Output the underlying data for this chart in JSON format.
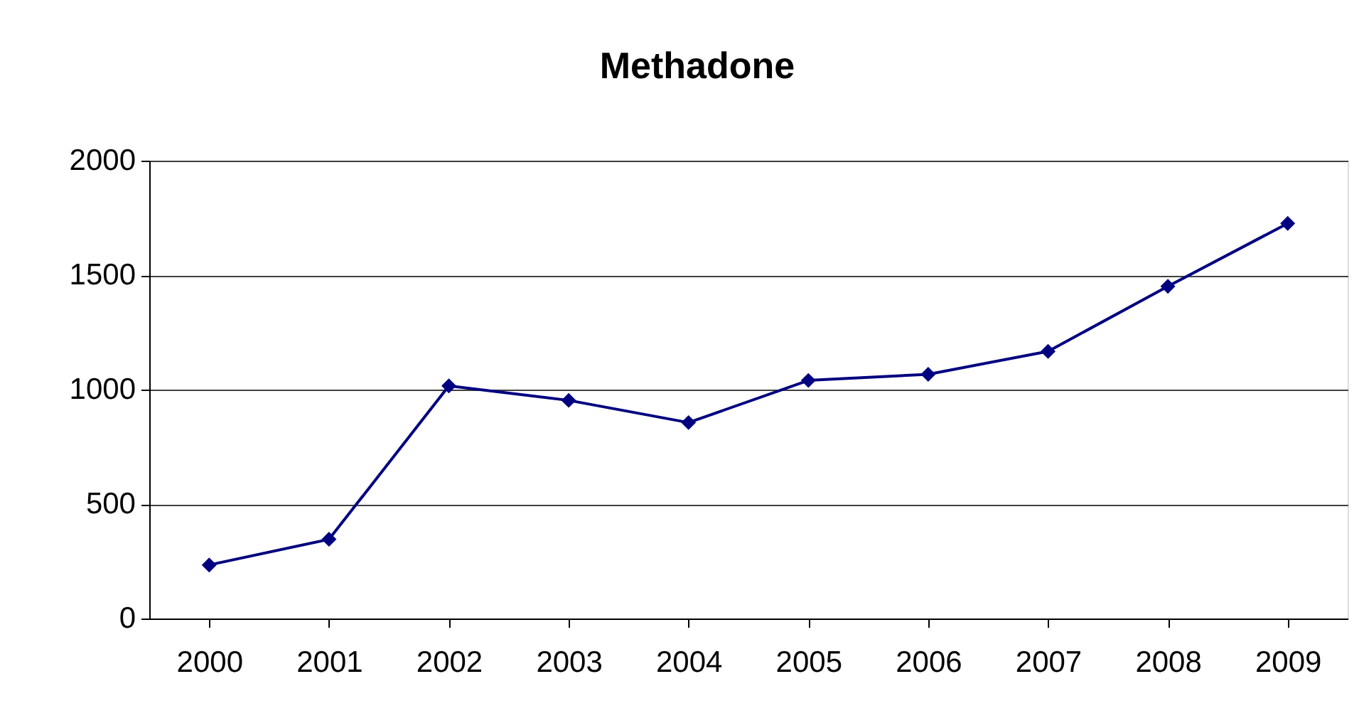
{
  "chart_data": {
    "type": "line",
    "title": "Methadone",
    "categories": [
      "2000",
      "2001",
      "2002",
      "2003",
      "2004",
      "2005",
      "2006",
      "2007",
      "2008",
      "2009"
    ],
    "series": [
      {
        "color": "#000080",
        "values": [
          234,
          346,
          1016,
          953,
          856,
          1040,
          1067,
          1167,
          1451,
          1726
        ]
      }
    ],
    "ylim": [
      0,
      2000
    ],
    "yticks": [
      0,
      500,
      1000,
      1500,
      2000
    ],
    "grid": "y",
    "marker": "diamond",
    "line_style": "solid"
  }
}
